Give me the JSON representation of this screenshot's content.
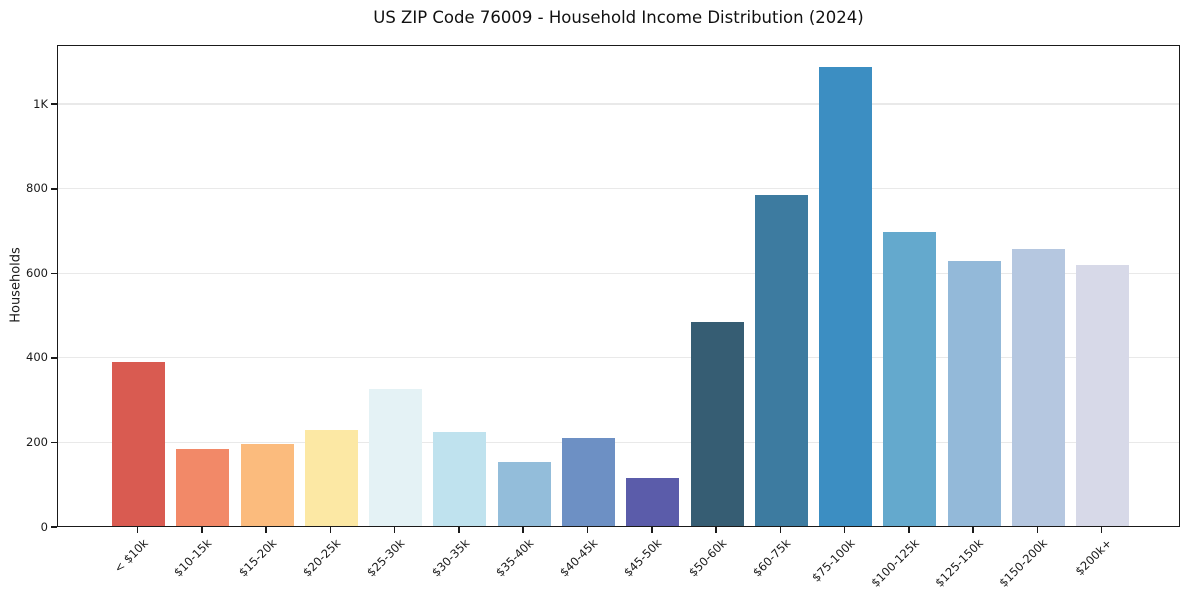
{
  "chart_data": {
    "type": "bar",
    "title": "US ZIP Code 76009 - Household Income Distribution (2024)",
    "xlabel": "",
    "ylabel": "Households",
    "ylim": [
      0,
      1140
    ],
    "grid": "horizontal-only",
    "legend_position": "none",
    "background_color": "#ffffff",
    "axis_color": "#1a1a1a",
    "grid_color": "#e9e9e9",
    "ytick_values": [
      0,
      200,
      400,
      600,
      800,
      1000
    ],
    "ytick_labels": [
      "0",
      "200",
      "400",
      "600",
      "800",
      "1K"
    ],
    "categories": [
      "< $10k",
      "$10-15k",
      "$15-20k",
      "$20-25k",
      "$25-30k",
      "$30-35k",
      "$35-40k",
      "$40-45k",
      "$45-50k",
      "$50-60k",
      "$60-75k",
      "$75-100k",
      "$100-125k",
      "$125-150k",
      "$150-200k",
      "$200k+"
    ],
    "values": [
      388,
      183,
      193,
      228,
      325,
      222,
      152,
      207,
      113,
      482,
      783,
      1086,
      696,
      626,
      654,
      617
    ],
    "bar_colors": [
      "#d95b51",
      "#f28968",
      "#fbbb7d",
      "#fce8a4",
      "#e4f2f5",
      "#bfe2ee",
      "#93bdda",
      "#6d90c4",
      "#5b5caa",
      "#365d73",
      "#3d7ba0",
      "#3c8ec2",
      "#64a9cd",
      "#93b9d9",
      "#b5c7e0",
      "#d7d9e8"
    ]
  }
}
